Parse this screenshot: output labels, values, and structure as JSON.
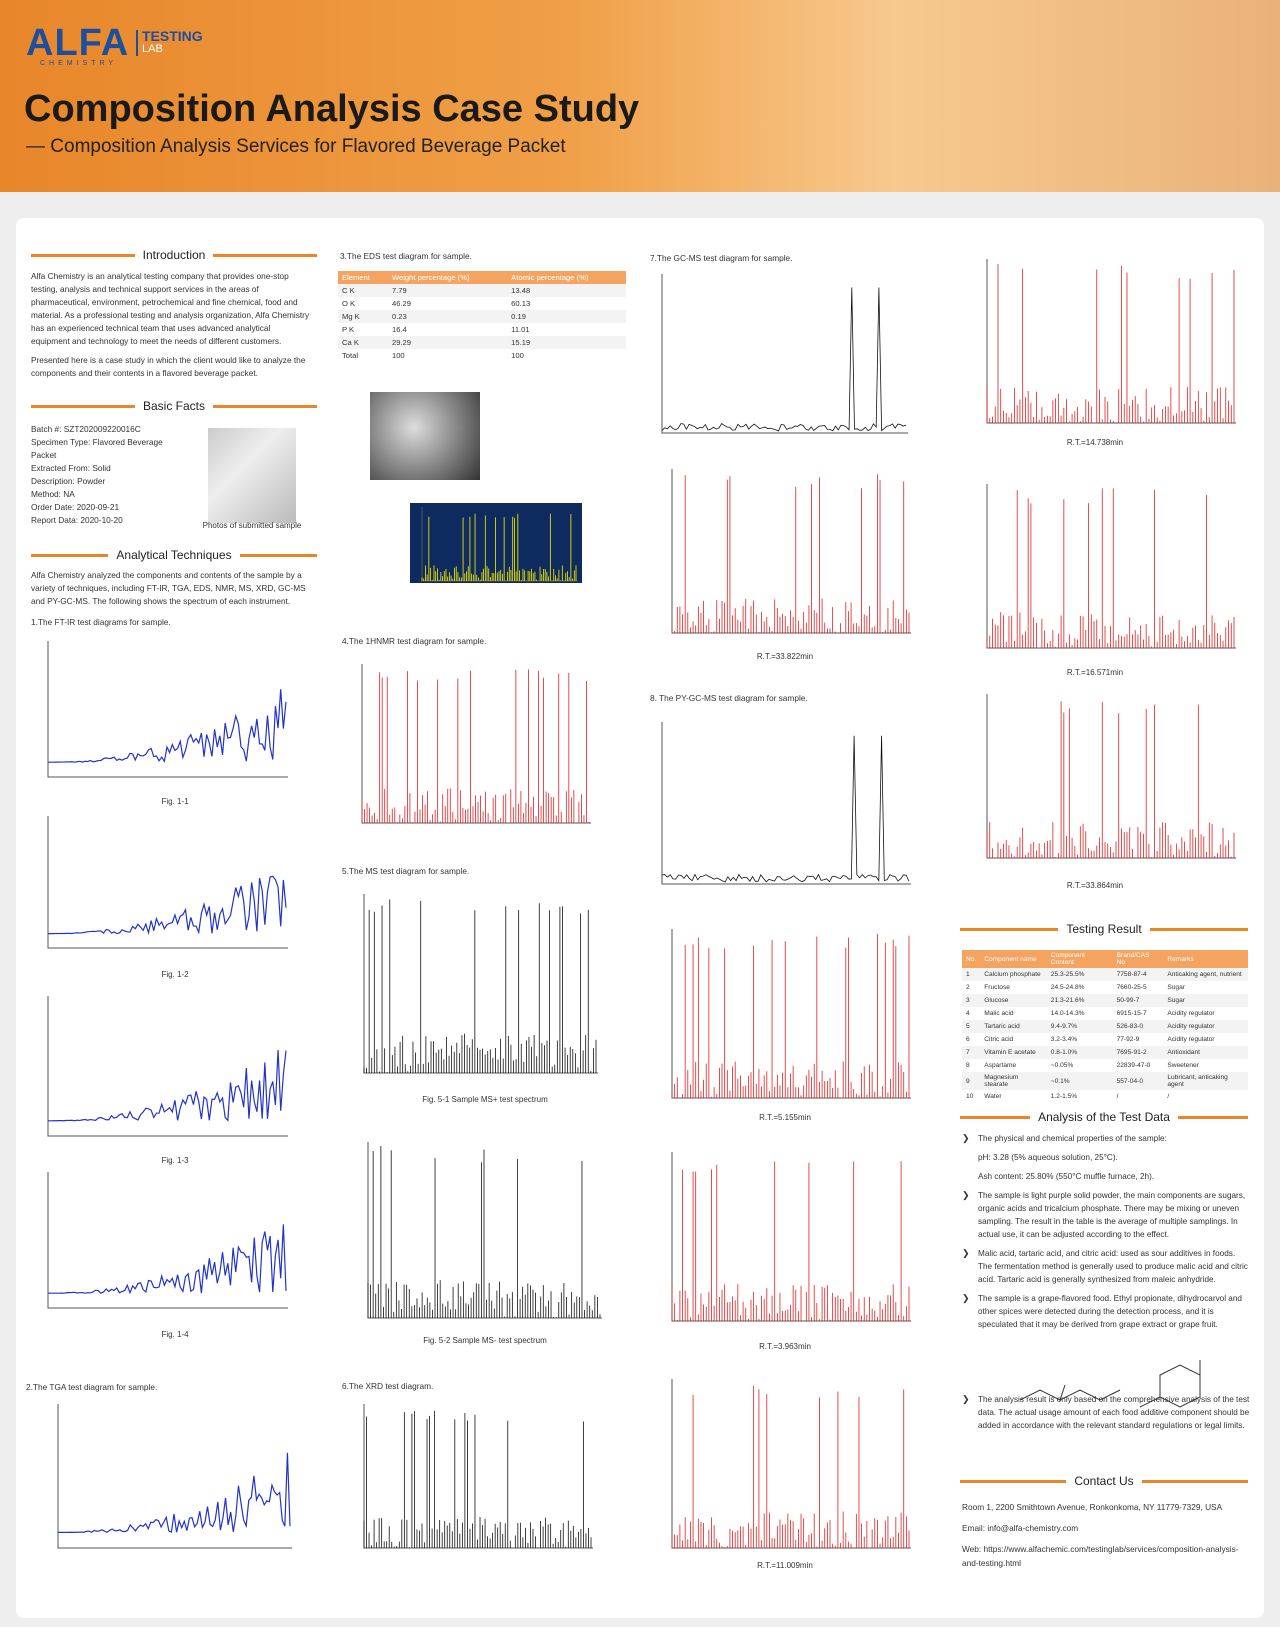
{
  "header": {
    "logo": "ALFA",
    "logo_sub": "CHEMISTRY",
    "lab_top": "TESTING",
    "lab_bottom": "LAB",
    "title": "Composition Analysis Case Study",
    "subtitle": "— Composition Analysis Services for Flavored Beverage Packet"
  },
  "intro": {
    "heading": "Introduction",
    "paragraphs": [
      "Alfa Chemistry is an analytical testing company that provides one-stop testing, analysis and technical support services in the areas of pharmaceutical, environment, petrochemical and fine chemical, food and material. As a professional testing and analysis organization, Alfa Chemistry has an experienced technical team that uses advanced analytical equipment and technology to meet the needs of different customers.",
      "Presented here is a case study in which the client would like to analyze the components and their contents in a flavored beverage packet."
    ]
  },
  "basic_facts": {
    "heading": "Basic Facts",
    "items": [
      "Batch #: SZT202009220016C",
      "Specimen Type: Flavored Beverage Packet",
      "Extracted From: Solid",
      "Description: Powder",
      "Method: NA",
      "Order Date: 2020-09-21",
      "Report Data: 2020-10-20"
    ],
    "photo_caption": "Photos of submitted sample"
  },
  "techniques": {
    "heading": "Analytical Techniques",
    "text": "Alfa Chemistry analyzed the components and contents of the sample by a variety of techniques, including FT-IR, TGA, EDS, NMR, MS, XRD, GC-MS and PY-GC-MS. The following shows the spectrum of each instrument.",
    "ftir_title": "1.The FT-IR test diagrams for sample.",
    "ftir_figs": [
      "Fig. 1-1",
      "Fig. 1-2",
      "Fig. 1-3",
      "Fig. 1-4"
    ],
    "tga_title": "2.The TGA test diagram for sample.",
    "eds_title": "3.The EDS test diagram for sample.",
    "hnmr_title": "4.The 1HNMR test diagram for sample.",
    "ms_title": "5.The MS test diagram for sample.",
    "ms_figs": [
      "Fig. 5-1 Sample MS+ test spectrum",
      "Fig. 5-2 Sample MS- test spectrum"
    ],
    "xrd_title": "6.The XRD test diagram.",
    "gcms_title": "7.The GC-MS test diagram for sample.",
    "gcms_rts": [
      "R.T.=33.822min",
      "R.T.=14.738min",
      "R.T.=16.571min",
      "R.T.=33.864min"
    ],
    "pygcms_title": "8. The PY-GC-MS test diagram for sample.",
    "pygcms_rts": [
      "R.T.=5.155min",
      "R.T.=3.963min",
      "R.T.=11.009min"
    ]
  },
  "eds": {
    "columns": [
      "Element",
      "Weight percentage (%)",
      "Atomic percentage (%)"
    ],
    "rows": [
      [
        "C K",
        "7.79",
        "13.48"
      ],
      [
        "O K",
        "46.29",
        "60.13"
      ],
      [
        "Mg K",
        "0.23",
        "0.19"
      ],
      [
        "P K",
        "16.4",
        "11.01"
      ],
      [
        "Ca K",
        "29.29",
        "15.19"
      ],
      [
        "Total",
        "100",
        "100"
      ]
    ]
  },
  "results": {
    "heading": "Testing Result",
    "columns": [
      "No.",
      "Component name",
      "Component Content",
      "Brand/CAS No",
      "Remarks"
    ],
    "rows": [
      [
        "1",
        "Calcium phosphate",
        "25.3-25.5%",
        "7758-87-4",
        "Anticaking agent, nutrient"
      ],
      [
        "2",
        "Fructose",
        "24.5-24.8%",
        "7660-25-5",
        "Sugar"
      ],
      [
        "3",
        "Glucose",
        "21.3-21.6%",
        "50-99-7",
        "Sugar"
      ],
      [
        "4",
        "Malic acid",
        "14.0-14.3%",
        "6915-15-7",
        "Acidity regulator"
      ],
      [
        "5",
        "Tartaric acid",
        "9.4-9.7%",
        "526-83-0",
        "Acidity regulator"
      ],
      [
        "6",
        "Citric acid",
        "3.2-3.4%",
        "77-92-9",
        "Acidity regulator"
      ],
      [
        "7",
        "Vitamin E acetate",
        "0.8-1.0%",
        "7695-91-2",
        "Antioxidant"
      ],
      [
        "8",
        "Aspartame",
        "~0.05%",
        "22839-47-0",
        "Sweetener"
      ],
      [
        "9",
        "Magnesium stearate",
        "~0.1%",
        "557-04-0",
        "Lubricant, anticaking agent"
      ],
      [
        "10",
        "Water",
        "1.2-1.5%",
        "/",
        "/"
      ]
    ]
  },
  "analysis": {
    "heading": "Analysis of the Test Data",
    "items": [
      [
        "The physical and chemical properties of the sample:",
        "pH: 3.28 (5% aqueous solution, 25°C).",
        "Ash content: 25.80% (550°C muffle furnace, 2h)."
      ],
      [
        "The sample is light purple solid powder, the main components are sugars, organic acids and tricalcium phosphate. There may be mixing or uneven sampling. The result in the table is the average of multiple samplings. In actual use, it can be adjusted according to the effect."
      ],
      [
        "Malic acid, tartaric acid, and citric acid: used as sour additives in foods. The fermentation method is generally used to produce malic acid and citric acid. Tartaric acid is generally synthesized from maleic anhydride."
      ],
      [
        "The sample is a grape-flavored food. Ethyl propionate, dihydrocarvol and other spices were detected during the detection process, and it is speculated that it may be derived from grape extract or grape fruit."
      ],
      [
        "The analysis result is only based on the comprehensive analysis of the test data. The actual usage amount of each food additive component should be added in accordance with the relevant standard regulations or legal limits."
      ]
    ]
  },
  "contact": {
    "heading": "Contact Us",
    "lines": [
      "Room 1, 2200 Smithtown Avenue, Ronkonkoma, NY 11779-7329, USA",
      "Email: info@alfa-chemistry.com",
      "Web: https://www.alfachemic.com/testinglab/services/composition-analysis-and-testing.html"
    ]
  }
}
